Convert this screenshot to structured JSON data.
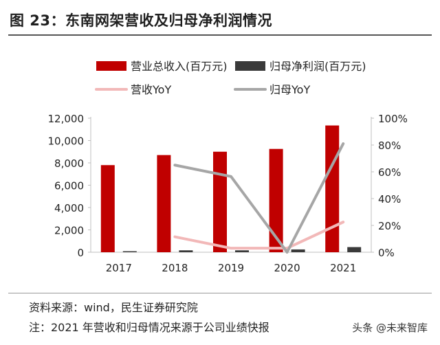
{
  "figure": {
    "title": "图 23：东南网架营收及归母净利润情况",
    "source": "资料来源：wind，民生证券研究院",
    "note": "注：2021 年营收和归母情况来源于公司业绩快报",
    "watermark": "头条 @未来智库"
  },
  "chart_data": {
    "type": "bar",
    "categories": [
      "2017",
      "2018",
      "2019",
      "2020",
      "2021"
    ],
    "series": [
      {
        "name": "营业总收入(百万元)",
        "type": "bar",
        "axis": "left",
        "color": "#c00000",
        "values": [
          7800,
          8700,
          9000,
          9250,
          11350
        ]
      },
      {
        "name": "归母净利润(百万元)",
        "type": "bar",
        "axis": "left",
        "color": "#3a3a3a",
        "values": [
          90,
          170,
          170,
          250,
          460
        ]
      },
      {
        "name": "营收YoY",
        "type": "line",
        "axis": "right",
        "color": "#f2b8b8",
        "values": [
          null,
          0.115,
          0.03,
          0.03,
          0.225
        ]
      },
      {
        "name": "归母YoY",
        "type": "line",
        "axis": "right",
        "color": "#a6a6a6",
        "values": [
          null,
          0.65,
          0.565,
          0.0,
          0.81
        ]
      }
    ],
    "y_left": {
      "ylim": [
        0,
        12000
      ],
      "ticks": [
        "0",
        "2,000",
        "4,000",
        "6,000",
        "8,000",
        "10,000",
        "12,000"
      ]
    },
    "y_right": {
      "ylim": [
        0,
        1.0
      ],
      "ticks": [
        "0%",
        "20%",
        "40%",
        "60%",
        "80%",
        "100%"
      ]
    },
    "legend_position": "top",
    "grid": false
  }
}
